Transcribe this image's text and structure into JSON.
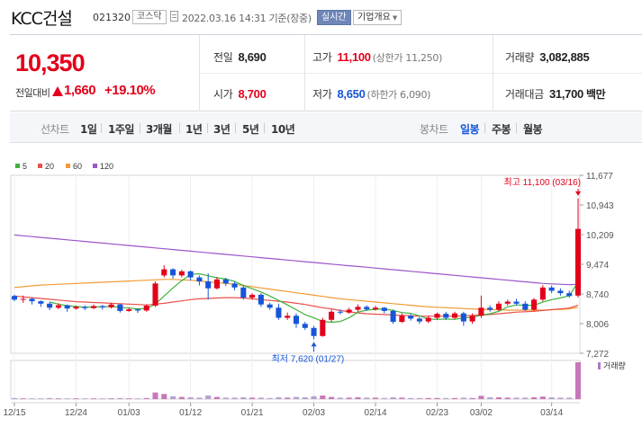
{
  "header": {
    "stock_name": "KCC건설",
    "stock_code": "021320",
    "market": "코스닥",
    "datetime": "2022.03.16 14:31 기준(장중)",
    "realtime": "실시간",
    "overview": "기업개요"
  },
  "price": {
    "current": "10,350",
    "change_label": "전일대비",
    "change_value": "1,660",
    "change_rate": "+19.10%"
  },
  "stats": {
    "prev_label": "전일",
    "prev_value": "8,690",
    "high_label": "고가",
    "high_value": "11,100",
    "high_sub": "(상한가 11,250)",
    "volume_label": "거래량",
    "volume_value": "3,082,885",
    "open_label": "시가",
    "open_value": "8,700",
    "low_label": "저가",
    "low_value": "8,650",
    "low_sub": "(하한가 6,090)",
    "amount_label": "거래대금",
    "amount_value": "31,700",
    "amount_unit": "백만"
  },
  "periods": {
    "line_label": "선차트",
    "line_items": [
      "1일",
      "1주일",
      "3개월",
      "1년",
      "3년",
      "5년",
      "10년"
    ],
    "candle_label": "봉차트",
    "candle_items": [
      "일봉",
      "주봉",
      "월봉"
    ],
    "active": "일봉"
  },
  "colors": {
    "up": "#e3001b",
    "down": "#1655d9",
    "ma5": "#3fb23b",
    "ma20": "#e9504a",
    "ma60": "#f29a35",
    "ma120": "#9b55c8"
  },
  "chart_data": {
    "type": "candlestick",
    "legend": [
      "5",
      "20",
      "60",
      "120"
    ],
    "y_ticks": [
      "11,677",
      "10,943",
      "10,209",
      "9,474",
      "8,740",
      "8,006",
      "7,272"
    ],
    "ylim": [
      7272,
      11677
    ],
    "x_ticks": [
      "12/15",
      "12/24",
      "01/03",
      "01/12",
      "01/21",
      "02/03",
      "02/14",
      "02/23",
      "03/02",
      "03/14"
    ],
    "annotations": {
      "high": "최고 11,100 (03/16)",
      "low": "최저 7,620 (01/27)"
    },
    "volume_label": "거래량",
    "candles": [
      [
        8690,
        8600,
        8720,
        8560
      ],
      [
        8600,
        8620,
        8700,
        8520
      ],
      [
        8620,
        8560,
        8650,
        8480
      ],
      [
        8560,
        8500,
        8580,
        8420
      ],
      [
        8500,
        8400,
        8540,
        8340
      ],
      [
        8400,
        8460,
        8510,
        8360
      ],
      [
        8460,
        8380,
        8480,
        8300
      ],
      [
        8380,
        8420,
        8450,
        8350
      ],
      [
        8420,
        8390,
        8460,
        8340
      ],
      [
        8390,
        8440,
        8480,
        8370
      ],
      [
        8440,
        8410,
        8470,
        8350
      ],
      [
        8410,
        8480,
        8520,
        8380
      ],
      [
        8480,
        8320,
        8500,
        8280
      ],
      [
        8320,
        8360,
        8400,
        8300
      ],
      [
        8360,
        8330,
        8380,
        8270
      ],
      [
        8330,
        8450,
        8480,
        8300
      ],
      [
        8450,
        9000,
        9050,
        8420
      ],
      [
        9200,
        9350,
        9450,
        9150
      ],
      [
        9350,
        9200,
        9380,
        9120
      ],
      [
        9200,
        9300,
        9340,
        9150
      ],
      [
        9300,
        9150,
        9320,
        9080
      ],
      [
        9150,
        9050,
        9200,
        8950
      ],
      [
        9050,
        8880,
        9250,
        8600
      ],
      [
        8880,
        9100,
        9160,
        8850
      ],
      [
        9100,
        9000,
        9140,
        8940
      ],
      [
        9000,
        8900,
        9040,
        8830
      ],
      [
        8900,
        8650,
        8950,
        8600
      ],
      [
        8650,
        8720,
        8760,
        8600
      ],
      [
        8720,
        8480,
        8760,
        8420
      ],
      [
        8480,
        8400,
        8520,
        8350
      ],
      [
        8400,
        8150,
        8500,
        8100
      ],
      [
        8150,
        8200,
        8280,
        8100
      ],
      [
        8200,
        8000,
        8260,
        7900
      ],
      [
        8000,
        7900,
        8050,
        7850
      ],
      [
        7900,
        7700,
        7950,
        7620
      ],
      [
        7700,
        8100,
        8150,
        7680
      ],
      [
        8100,
        8300,
        8350,
        8050
      ],
      [
        8300,
        8280,
        8360,
        8230
      ],
      [
        8280,
        8350,
        8400,
        8250
      ],
      [
        8350,
        8420,
        8480,
        8300
      ],
      [
        8420,
        8360,
        8460,
        8320
      ],
      [
        8360,
        8400,
        8450,
        8330
      ],
      [
        8400,
        8320,
        8420,
        8260
      ],
      [
        8320,
        8050,
        8360,
        8000
      ],
      [
        8050,
        8200,
        8260,
        8020
      ],
      [
        8200,
        8130,
        8240,
        8080
      ],
      [
        8130,
        8060,
        8170,
        8000
      ],
      [
        8060,
        8150,
        8200,
        8020
      ],
      [
        8150,
        8250,
        8280,
        8100
      ],
      [
        8250,
        8150,
        8300,
        8100
      ],
      [
        8150,
        8260,
        8300,
        8120
      ],
      [
        8260,
        8060,
        8300,
        7950
      ],
      [
        8060,
        8200,
        8260,
        8000
      ],
      [
        8200,
        8400,
        8700,
        8150
      ],
      [
        8400,
        8350,
        8460,
        8300
      ],
      [
        8350,
        8500,
        8560,
        8320
      ],
      [
        8500,
        8550,
        8600,
        8450
      ],
      [
        8550,
        8500,
        8620,
        8460
      ],
      [
        8500,
        8350,
        8560,
        8320
      ],
      [
        8350,
        8600,
        8640,
        8320
      ],
      [
        8600,
        8900,
        8960,
        8560
      ],
      [
        8900,
        8820,
        8950,
        8760
      ],
      [
        8820,
        8760,
        8880,
        8700
      ],
      [
        8760,
        8690,
        8820,
        8650
      ],
      [
        8700,
        10350,
        11100,
        8650
      ]
    ],
    "ma": {
      "5": [
        null,
        null,
        null,
        null,
        8540,
        8490,
        8450,
        8430,
        8410,
        8420,
        8420,
        8430,
        8410,
        8390,
        8370,
        8380,
        8490,
        8690,
        8890,
        9070,
        9220,
        9240,
        9190,
        9140,
        9110,
        9050,
        8950,
        8870,
        8790,
        8690,
        8580,
        8470,
        8350,
        8230,
        8150,
        8060,
        8040,
        8060,
        8150,
        8290,
        8340,
        8360,
        8370,
        8330,
        8280,
        8260,
        8200,
        8120,
        8110,
        8120,
        8110,
        8150,
        8160,
        8220,
        8250,
        8310,
        8420,
        8470,
        8460,
        8460,
        8540,
        8600,
        8640,
        8700,
        9030
      ],
      "20": [
        8690,
        8670,
        8650,
        8630,
        8610,
        8590,
        8570,
        8550,
        8540,
        8530,
        8520,
        8510,
        8500,
        8490,
        8480,
        8470,
        8490,
        8510,
        8540,
        8570,
        8600,
        8620,
        8630,
        8640,
        8650,
        8650,
        8640,
        8620,
        8600,
        8580,
        8560,
        8540,
        8510,
        8480,
        8440,
        8400,
        8370,
        8330,
        8300,
        8270,
        8250,
        8240,
        8230,
        8220,
        8210,
        8200,
        8190,
        8190,
        8190,
        8190,
        8190,
        8200,
        8210,
        8220,
        8230,
        8250,
        8270,
        8290,
        8300,
        8310,
        8330,
        8350,
        8370,
        8390,
        8460
      ],
      "60": [
        8900,
        8920,
        8940,
        8960,
        8970,
        8980,
        8990,
        9000,
        9010,
        9020,
        9030,
        9040,
        9050,
        9060,
        9070,
        9080,
        9090,
        9100,
        9100,
        9090,
        9080,
        9060,
        9040,
        9020,
        9000,
        8980,
        8950,
        8920,
        8890,
        8860,
        8830,
        8800,
        8770,
        8740,
        8710,
        8680,
        8650,
        8620,
        8600,
        8580,
        8560,
        8540,
        8520,
        8500,
        8480,
        8460,
        8440,
        8420,
        8410,
        8400,
        8390,
        8380,
        8370,
        8360,
        8350,
        8350,
        8340,
        8340,
        8340,
        8340,
        8340,
        8350,
        8360,
        8370,
        8410
      ],
      "120": [
        10200,
        10180,
        10160,
        10140,
        10120,
        10100,
        10080,
        10060,
        10040,
        10020,
        10000,
        9980,
        9960,
        9940,
        9920,
        9900,
        9880,
        9860,
        9840,
        9820,
        9800,
        9780,
        9760,
        9740,
        9720,
        9700,
        9680,
        9660,
        9640,
        9620,
        9600,
        9580,
        9560,
        9540,
        9520,
        9500,
        9480,
        9460,
        9440,
        9420,
        9400,
        9380,
        9360,
        9340,
        9320,
        9300,
        9280,
        9260,
        9240,
        9220,
        9200,
        9180,
        9160,
        9140,
        9120,
        9100,
        9080,
        9060,
        9040,
        9020,
        9000,
        8990,
        8980,
        8970,
        8980
      ]
    },
    "volume": [
      3,
      2,
      2,
      2,
      3,
      2,
      2,
      2,
      2,
      2,
      2,
      2,
      3,
      2,
      2,
      3,
      18,
      14,
      8,
      6,
      5,
      4,
      10,
      6,
      4,
      4,
      5,
      4,
      4,
      3,
      5,
      4,
      6,
      5,
      8,
      10,
      6,
      4,
      4,
      5,
      4,
      4,
      3,
      5,
      4,
      3,
      3,
      3,
      3,
      3,
      3,
      4,
      3,
      9,
      5,
      5,
      4,
      4,
      4,
      5,
      7,
      5,
      4,
      4,
      100
    ]
  }
}
